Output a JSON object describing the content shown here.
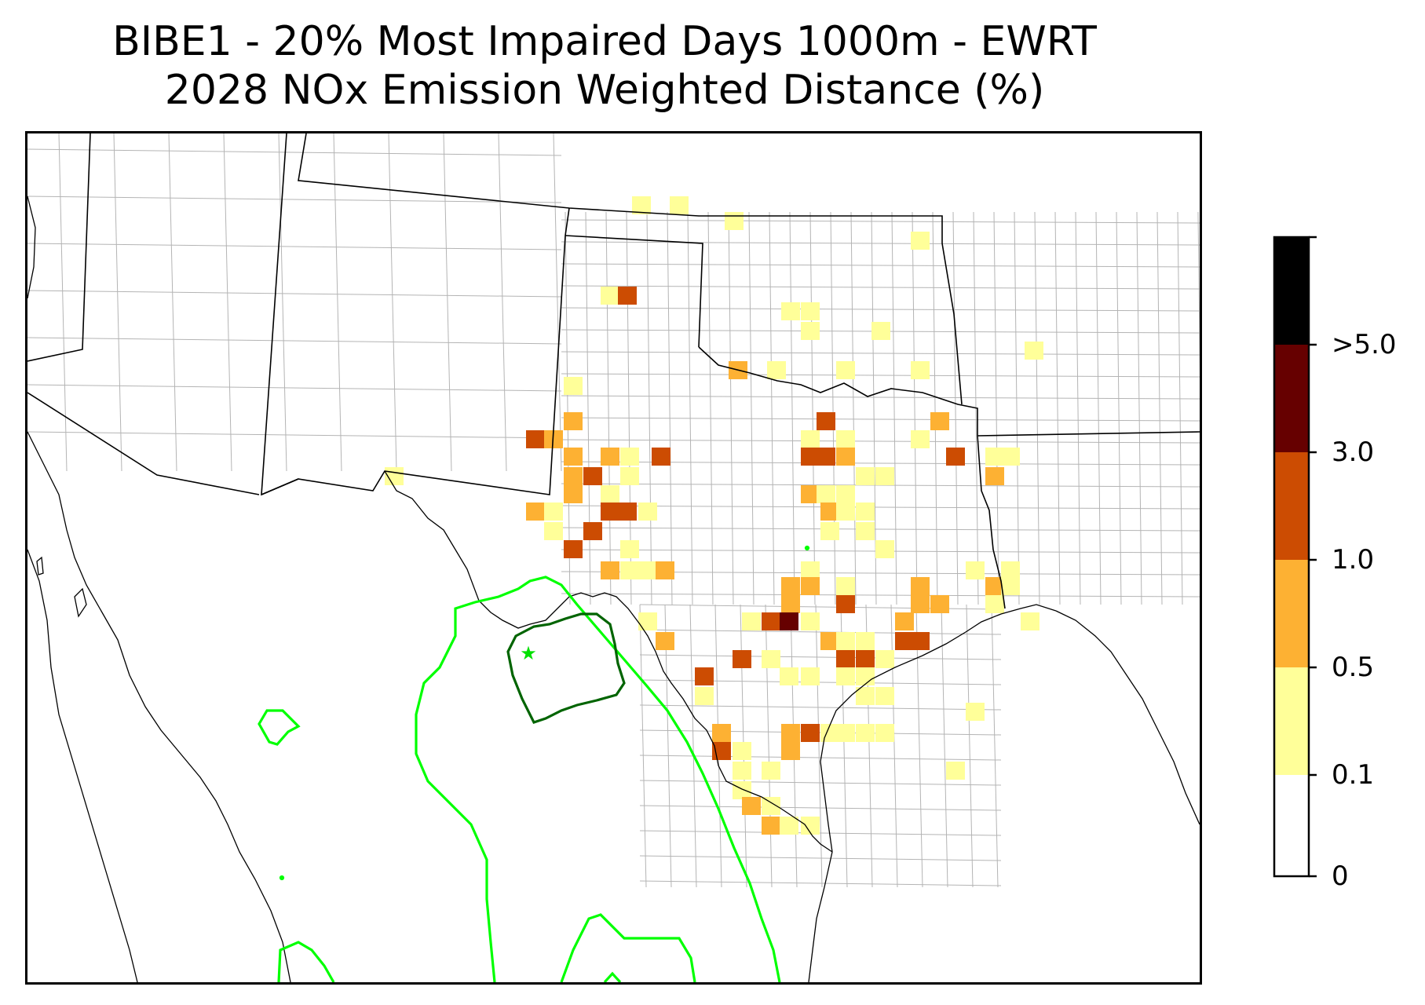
{
  "title": {
    "line1": "BIBE1 - 20% Most Impaired Days 1000m - EWRT",
    "line2": "2028 NOx Emission Weighted Distance (%)"
  },
  "colors": {
    "bin_0_0.1": "#ffffff",
    "bin_0.1_0.5": "#ffff99",
    "bin_0.5_1.0": "#fdb133",
    "bin_1.0_3.0": "#cc4c02",
    "bin_3.0_5.0": "#660000",
    "bin_gt5": "#000000",
    "contour_outer": "#00ff00",
    "contour_inner": "#006400",
    "county_lines": "#aaaaaa",
    "state_lines": "#000000"
  },
  "colorbar": {
    "ticks": [
      "0",
      "0.1",
      "0.5",
      "1.0",
      "3.0",
      ">5.0"
    ]
  },
  "receptor": {
    "name": "BIBE1",
    "marker": "green-star-icon"
  }
}
